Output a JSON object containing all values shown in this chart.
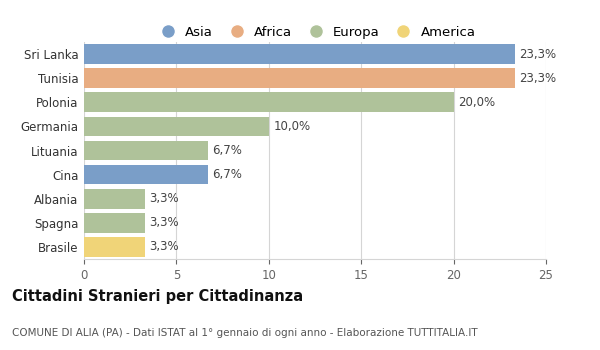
{
  "categories": [
    "Sri Lanka",
    "Tunisia",
    "Polonia",
    "Germania",
    "Lituania",
    "Cina",
    "Albania",
    "Spagna",
    "Brasile"
  ],
  "values": [
    23.3,
    23.3,
    20.0,
    10.0,
    6.7,
    6.7,
    3.3,
    3.3,
    3.3
  ],
  "colors": [
    "#7a9ec8",
    "#e8ad82",
    "#afc29a",
    "#afc29a",
    "#afc29a",
    "#7a9ec8",
    "#afc29a",
    "#afc29a",
    "#f0d478"
  ],
  "labels": [
    "23,3%",
    "23,3%",
    "20,0%",
    "10,0%",
    "6,7%",
    "6,7%",
    "3,3%",
    "3,3%",
    "3,3%"
  ],
  "legend_labels": [
    "Asia",
    "Africa",
    "Europa",
    "America"
  ],
  "legend_colors": [
    "#7a9ec8",
    "#e8ad82",
    "#afc29a",
    "#f0d478"
  ],
  "xlim": [
    0,
    25
  ],
  "xticks": [
    0,
    5,
    10,
    15,
    20,
    25
  ],
  "title": "Cittadini Stranieri per Cittadinanza",
  "subtitle": "COMUNE DI ALIA (PA) - Dati ISTAT al 1° gennaio di ogni anno - Elaborazione TUTTITALIA.IT",
  "background_color": "#ffffff",
  "grid_color": "#d5d5d5",
  "bar_height": 0.82,
  "label_fontsize": 8.5,
  "title_fontsize": 10.5,
  "subtitle_fontsize": 7.5,
  "ytick_fontsize": 8.5,
  "xtick_fontsize": 8.5,
  "legend_fontsize": 9.5
}
